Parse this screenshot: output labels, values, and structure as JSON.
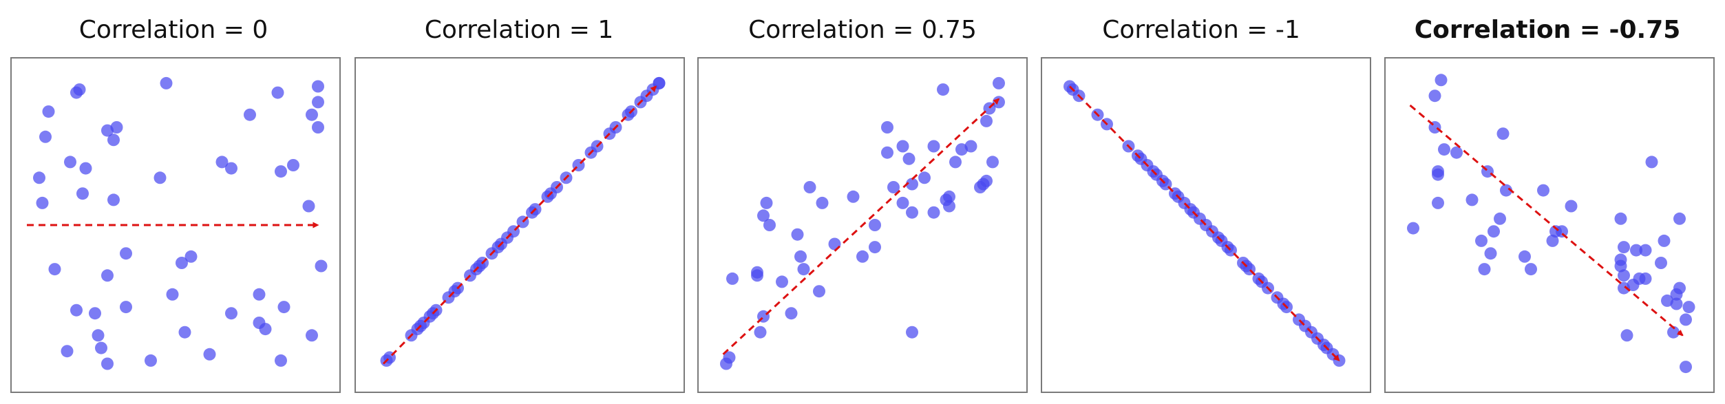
{
  "colors": {
    "point": "#4a4af0",
    "trend": "#dd1111",
    "frame": "#7a7a7a"
  },
  "chart_data": [
    {
      "type": "scatter",
      "title": "Correlation = 0",
      "title_bold": false,
      "xlim": [
        0,
        10
      ],
      "ylim": [
        0,
        10
      ],
      "trend": {
        "from": [
          0.2,
          5.0
        ],
        "to": [
          9.6,
          5.0
        ]
      },
      "points": [
        [
          4.7,
          9.5
        ],
        [
          1.8,
          9.2
        ],
        [
          1.9,
          9.3
        ],
        [
          8.3,
          9.2
        ],
        [
          9.6,
          9.4
        ],
        [
          9.6,
          8.9
        ],
        [
          0.9,
          8.6
        ],
        [
          7.4,
          8.5
        ],
        [
          9.4,
          8.5
        ],
        [
          9.6,
          8.1
        ],
        [
          2.8,
          8.0
        ],
        [
          3.0,
          7.7
        ],
        [
          3.1,
          8.1
        ],
        [
          0.8,
          7.8
        ],
        [
          6.5,
          7.0
        ],
        [
          8.8,
          6.9
        ],
        [
          1.6,
          7.0
        ],
        [
          6.8,
          6.8
        ],
        [
          8.4,
          6.7
        ],
        [
          2.1,
          6.8
        ],
        [
          0.6,
          6.5
        ],
        [
          4.5,
          6.5
        ],
        [
          2.0,
          6.0
        ],
        [
          0.7,
          5.7
        ],
        [
          3.0,
          5.8
        ],
        [
          9.3,
          5.6
        ],
        [
          3.4,
          4.1
        ],
        [
          5.5,
          4.0
        ],
        [
          5.2,
          3.8
        ],
        [
          1.1,
          3.6
        ],
        [
          2.8,
          3.4
        ],
        [
          9.7,
          3.7
        ],
        [
          4.9,
          2.8
        ],
        [
          7.7,
          2.8
        ],
        [
          3.4,
          2.4
        ],
        [
          1.8,
          2.3
        ],
        [
          2.4,
          2.2
        ],
        [
          6.8,
          2.2
        ],
        [
          8.5,
          2.4
        ],
        [
          7.7,
          1.9
        ],
        [
          7.9,
          1.7
        ],
        [
          5.3,
          1.6
        ],
        [
          2.5,
          1.5
        ],
        [
          9.4,
          1.5
        ],
        [
          1.5,
          1.0
        ],
        [
          2.6,
          1.1
        ],
        [
          6.1,
          0.9
        ],
        [
          4.2,
          0.7
        ],
        [
          2.8,
          0.6
        ],
        [
          8.4,
          0.7
        ]
      ]
    },
    {
      "type": "scatter",
      "title": "Correlation = 1",
      "title_bold": false,
      "xlim": [
        0,
        10
      ],
      "ylim": [
        0,
        10
      ],
      "trend": {
        "from": [
          0.6,
          0.6
        ],
        "to": [
          9.4,
          9.4
        ]
      },
      "points": [
        [
          0.7,
          0.7
        ],
        [
          0.8,
          0.8
        ],
        [
          1.5,
          1.5
        ],
        [
          1.7,
          1.7
        ],
        [
          1.8,
          1.8
        ],
        [
          1.9,
          1.9
        ],
        [
          2.1,
          2.1
        ],
        [
          2.3,
          2.3
        ],
        [
          2.2,
          2.2
        ],
        [
          2.7,
          2.7
        ],
        [
          2.9,
          2.9
        ],
        [
          3.4,
          3.4
        ],
        [
          3.6,
          3.6
        ],
        [
          3.8,
          3.8
        ],
        [
          3.7,
          3.7
        ],
        [
          4.1,
          4.1
        ],
        [
          4.4,
          4.4
        ],
        [
          4.8,
          4.8
        ],
        [
          4.6,
          4.6
        ],
        [
          5.1,
          5.1
        ],
        [
          5.4,
          5.4
        ],
        [
          5.5,
          5.5
        ],
        [
          5.9,
          5.9
        ],
        [
          6.2,
          6.2
        ],
        [
          6.5,
          6.5
        ],
        [
          6.9,
          6.9
        ],
        [
          7.3,
          7.3
        ],
        [
          7.5,
          7.5
        ],
        [
          7.9,
          7.9
        ],
        [
          8.1,
          8.1
        ],
        [
          8.5,
          8.5
        ],
        [
          8.6,
          8.6
        ],
        [
          8.9,
          8.9
        ],
        [
          9.1,
          9.1
        ],
        [
          9.3,
          9.3
        ],
        [
          9.5,
          9.5
        ],
        [
          9.5,
          9.5
        ],
        [
          4.3,
          4.3
        ],
        [
          6.0,
          6.0
        ],
        [
          3.0,
          3.0
        ]
      ]
    },
    {
      "type": "scatter",
      "title": "Correlation = 0.75",
      "title_bold": false,
      "xlim": [
        0,
        10
      ],
      "ylim": [
        0,
        10
      ],
      "trend": {
        "from": [
          0.5,
          0.9
        ],
        "to": [
          9.4,
          9.0
        ]
      },
      "points": [
        [
          7.6,
          9.3
        ],
        [
          9.4,
          9.5
        ],
        [
          9.4,
          8.9
        ],
        [
          9.1,
          8.7
        ],
        [
          5.8,
          8.1
        ],
        [
          9.0,
          8.3
        ],
        [
          6.3,
          7.5
        ],
        [
          5.8,
          7.3
        ],
        [
          6.5,
          7.1
        ],
        [
          7.3,
          7.5
        ],
        [
          8.2,
          7.4
        ],
        [
          8.5,
          7.5
        ],
        [
          9.2,
          7.0
        ],
        [
          8.0,
          7.0
        ],
        [
          7.0,
          6.5
        ],
        [
          8.9,
          6.3
        ],
        [
          9.0,
          6.4
        ],
        [
          6.0,
          6.2
        ],
        [
          6.6,
          6.3
        ],
        [
          3.3,
          6.2
        ],
        [
          7.8,
          5.9
        ],
        [
          1.9,
          5.7
        ],
        [
          3.7,
          5.7
        ],
        [
          6.3,
          5.7
        ],
        [
          4.7,
          5.9
        ],
        [
          6.6,
          5.4
        ],
        [
          7.8,
          5.6
        ],
        [
          7.7,
          5.8
        ],
        [
          7.3,
          5.4
        ],
        [
          1.8,
          5.3
        ],
        [
          2.0,
          5.0
        ],
        [
          2.9,
          4.7
        ],
        [
          4.1,
          4.4
        ],
        [
          5.4,
          4.3
        ],
        [
          5.0,
          4.0
        ],
        [
          3.1,
          3.6
        ],
        [
          1.6,
          3.5
        ],
        [
          1.6,
          3.4
        ],
        [
          0.8,
          3.3
        ],
        [
          2.4,
          3.2
        ],
        [
          3.6,
          2.9
        ],
        [
          1.8,
          2.1
        ],
        [
          2.7,
          2.2
        ],
        [
          1.7,
          1.6
        ],
        [
          6.6,
          1.6
        ],
        [
          0.7,
          0.8
        ],
        [
          0.6,
          0.6
        ],
        [
          5.4,
          5.0
        ],
        [
          3.0,
          4.0
        ],
        [
          8.8,
          6.2
        ]
      ]
    },
    {
      "type": "scatter",
      "title": "Correlation = -1",
      "title_bold": false,
      "xlim": [
        0,
        10
      ],
      "ylim": [
        0,
        10
      ],
      "trend": {
        "from": [
          0.6,
          9.4
        ],
        "to": [
          9.3,
          0.7
        ]
      },
      "points": [
        [
          0.6,
          9.4
        ],
        [
          0.7,
          9.3
        ],
        [
          0.9,
          9.1
        ],
        [
          1.5,
          8.5
        ],
        [
          1.8,
          8.2
        ],
        [
          2.5,
          7.5
        ],
        [
          2.8,
          7.2
        ],
        [
          2.9,
          7.1
        ],
        [
          3.1,
          6.9
        ],
        [
          3.3,
          6.7
        ],
        [
          3.4,
          6.6
        ],
        [
          3.7,
          6.3
        ],
        [
          4.0,
          6.0
        ],
        [
          4.1,
          5.9
        ],
        [
          4.3,
          5.7
        ],
        [
          4.5,
          5.5
        ],
        [
          4.6,
          5.4
        ],
        [
          4.8,
          5.2
        ],
        [
          5.2,
          4.8
        ],
        [
          5.4,
          4.6
        ],
        [
          5.5,
          4.5
        ],
        [
          5.7,
          4.3
        ],
        [
          5.8,
          4.2
        ],
        [
          6.2,
          3.8
        ],
        [
          6.4,
          3.6
        ],
        [
          6.7,
          3.3
        ],
        [
          6.8,
          3.2
        ],
        [
          7.0,
          3.0
        ],
        [
          7.3,
          2.7
        ],
        [
          7.5,
          2.5
        ],
        [
          7.6,
          2.4
        ],
        [
          8.0,
          2.0
        ],
        [
          8.2,
          1.8
        ],
        [
          8.4,
          1.6
        ],
        [
          8.6,
          1.4
        ],
        [
          8.8,
          1.2
        ],
        [
          8.9,
          1.1
        ],
        [
          9.1,
          0.9
        ],
        [
          9.3,
          0.7
        ],
        [
          3.6,
          6.4
        ],
        [
          6.3,
          3.7
        ],
        [
          5.0,
          5.0
        ]
      ]
    },
    {
      "type": "scatter",
      "title": "Correlation = -0.75",
      "title_bold": true,
      "xlim": [
        0,
        10
      ],
      "ylim": [
        0,
        10
      ],
      "trend": {
        "from": [
          0.5,
          8.8
        ],
        "to": [
          9.3,
          1.5
        ]
      },
      "points": [
        [
          1.5,
          9.6
        ],
        [
          1.3,
          9.1
        ],
        [
          3.5,
          7.9
        ],
        [
          1.6,
          7.4
        ],
        [
          2.0,
          7.3
        ],
        [
          8.3,
          7.0
        ],
        [
          1.4,
          6.7
        ],
        [
          1.4,
          6.6
        ],
        [
          3.0,
          6.7
        ],
        [
          3.6,
          6.1
        ],
        [
          4.8,
          6.1
        ],
        [
          1.4,
          5.7
        ],
        [
          2.5,
          5.8
        ],
        [
          5.7,
          5.6
        ],
        [
          3.4,
          5.2
        ],
        [
          7.3,
          5.2
        ],
        [
          9.2,
          5.2
        ],
        [
          0.6,
          4.9
        ],
        [
          3.2,
          4.8
        ],
        [
          5.2,
          4.8
        ],
        [
          5.4,
          4.8
        ],
        [
          2.8,
          4.5
        ],
        [
          5.1,
          4.5
        ],
        [
          8.7,
          4.5
        ],
        [
          7.4,
          4.3
        ],
        [
          7.8,
          4.2
        ],
        [
          8.1,
          4.2
        ],
        [
          3.1,
          4.1
        ],
        [
          4.2,
          4.0
        ],
        [
          7.3,
          3.9
        ],
        [
          7.3,
          3.7
        ],
        [
          8.6,
          3.8
        ],
        [
          2.9,
          3.6
        ],
        [
          4.4,
          3.6
        ],
        [
          7.4,
          3.4
        ],
        [
          8.1,
          3.3
        ],
        [
          7.7,
          3.1
        ],
        [
          7.9,
          3.3
        ],
        [
          9.2,
          3.0
        ],
        [
          9.1,
          2.8
        ],
        [
          8.8,
          2.6
        ],
        [
          9.1,
          2.5
        ],
        [
          9.5,
          2.4
        ],
        [
          9.4,
          2.0
        ],
        [
          7.5,
          1.5
        ],
        [
          9.0,
          1.6
        ],
        [
          9.4,
          0.5
        ],
        [
          7.4,
          3.0
        ],
        [
          1.3,
          8.1
        ]
      ]
    }
  ]
}
